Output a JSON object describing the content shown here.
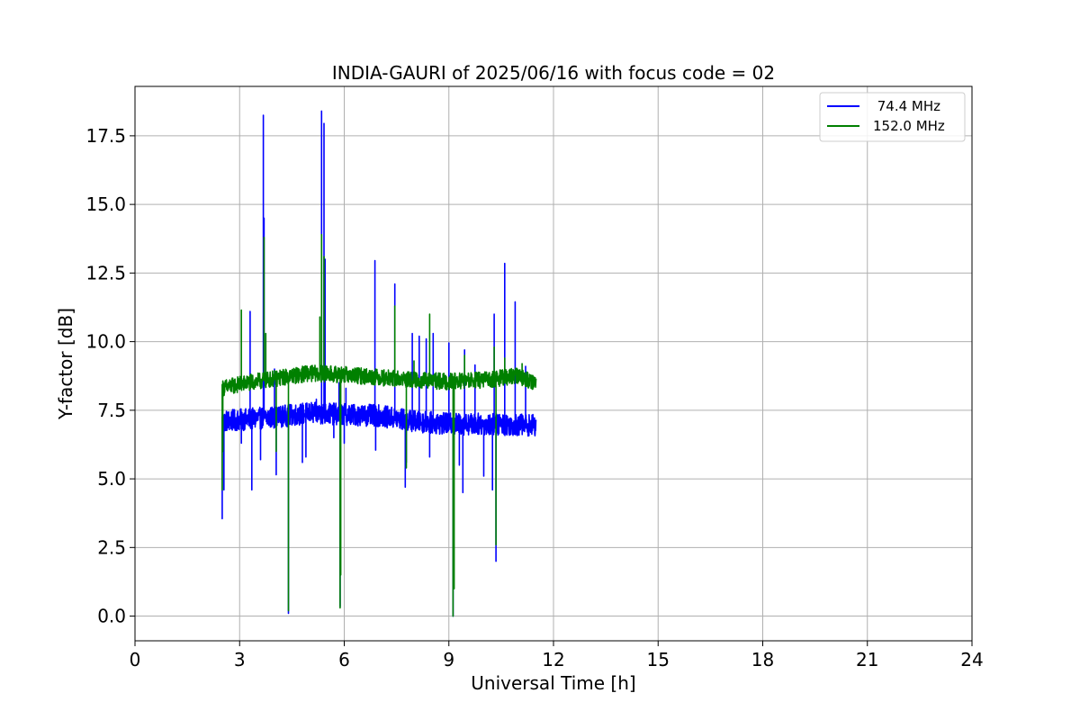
{
  "chart_data": {
    "type": "line",
    "title": "INDIA-GAURI of 2025/06/16 with focus code = 02",
    "xlabel": "Universal Time [h]",
    "ylabel": "Y-factor [dB]",
    "xlim": [
      0,
      24
    ],
    "ylim": [
      -0.9,
      19.3
    ],
    "xticks": [
      0,
      3,
      6,
      9,
      12,
      15,
      18,
      21,
      24
    ],
    "xtick_labels": [
      "0",
      "3",
      "6",
      "9",
      "12",
      "15",
      "18",
      "21",
      "24"
    ],
    "yticks": [
      0,
      2.5,
      5,
      7.5,
      10,
      12.5,
      15,
      17.5
    ],
    "ytick_labels": [
      "0.0",
      "2.5",
      "5.0",
      "7.5",
      "10.0",
      "12.5",
      "15.0",
      "17.5"
    ],
    "grid": true,
    "legend_position": "top-right",
    "series": [
      {
        "name": " 74.4 MHz",
        "color": "#0000ff",
        "baseline": [
          [
            2.5,
            7.1
          ],
          [
            4.0,
            7.25
          ],
          [
            5.0,
            7.4
          ],
          [
            6.0,
            7.35
          ],
          [
            7.0,
            7.3
          ],
          [
            8.0,
            7.1
          ],
          [
            9.0,
            7.0
          ],
          [
            10.0,
            7.0
          ],
          [
            11.5,
            6.95
          ]
        ],
        "noise_amplitude": 0.4,
        "spikes": [
          [
            2.5,
            3.55
          ],
          [
            2.55,
            4.6
          ],
          [
            3.05,
            6.3
          ],
          [
            3.3,
            11.1
          ],
          [
            3.35,
            4.6
          ],
          [
            3.68,
            18.25
          ],
          [
            3.7,
            14.5
          ],
          [
            3.6,
            5.7
          ],
          [
            4.0,
            9.0
          ],
          [
            4.05,
            5.15
          ],
          [
            4.4,
            0.1
          ],
          [
            4.8,
            5.6
          ],
          [
            4.9,
            5.8
          ],
          [
            5.35,
            18.4
          ],
          [
            5.42,
            17.95
          ],
          [
            5.45,
            13.0
          ],
          [
            5.2,
            7.9
          ],
          [
            5.7,
            6.5
          ],
          [
            5.85,
            8.5
          ],
          [
            5.88,
            0.35
          ],
          [
            6.0,
            6.3
          ],
          [
            6.05,
            8.3
          ],
          [
            6.88,
            12.95
          ],
          [
            6.9,
            6.05
          ],
          [
            7.45,
            12.1
          ],
          [
            7.75,
            4.7
          ],
          [
            7.78,
            5.6
          ],
          [
            7.95,
            10.3
          ],
          [
            8.15,
            10.2
          ],
          [
            8.35,
            10.1
          ],
          [
            8.45,
            5.8
          ],
          [
            8.55,
            10.3
          ],
          [
            9.0,
            9.95
          ],
          [
            9.12,
            0.0
          ],
          [
            9.4,
            4.5
          ],
          [
            9.45,
            9.7
          ],
          [
            9.3,
            5.5
          ],
          [
            9.75,
            9.15
          ],
          [
            10.0,
            5.1
          ],
          [
            10.25,
            4.6
          ],
          [
            10.3,
            11.0
          ],
          [
            10.35,
            2.0
          ],
          [
            10.6,
            12.85
          ],
          [
            10.9,
            11.45
          ],
          [
            11.2,
            9.1
          ]
        ]
      },
      {
        "name": "152.0 MHz",
        "color": "#008000",
        "baseline": [
          [
            2.5,
            8.3
          ],
          [
            3.0,
            8.45
          ],
          [
            4.0,
            8.65
          ],
          [
            5.0,
            8.85
          ],
          [
            6.0,
            8.8
          ],
          [
            7.0,
            8.7
          ],
          [
            8.0,
            8.6
          ],
          [
            9.0,
            8.55
          ],
          [
            10.0,
            8.6
          ],
          [
            11.0,
            8.75
          ],
          [
            11.5,
            8.5
          ]
        ],
        "noise_amplitude": 0.3,
        "spikes": [
          [
            2.5,
            4.6
          ],
          [
            2.52,
            6.0
          ],
          [
            3.05,
            11.15
          ],
          [
            3.7,
            13.8
          ],
          [
            3.75,
            10.3
          ],
          [
            4.4,
            0.2
          ],
          [
            4.05,
            6.0
          ],
          [
            5.35,
            13.9
          ],
          [
            5.42,
            13.1
          ],
          [
            5.3,
            10.9
          ],
          [
            5.88,
            0.3
          ],
          [
            5.9,
            1.5
          ],
          [
            6.9,
            9.0
          ],
          [
            7.45,
            11.3
          ],
          [
            7.78,
            5.4
          ],
          [
            8.45,
            11.0
          ],
          [
            8.0,
            9.3
          ],
          [
            9.12,
            0.0
          ],
          [
            9.15,
            1.0
          ],
          [
            9.45,
            9.5
          ],
          [
            10.35,
            2.6
          ],
          [
            10.3,
            9.8
          ],
          [
            10.6,
            9.4
          ],
          [
            11.1,
            9.2
          ]
        ]
      }
    ]
  }
}
